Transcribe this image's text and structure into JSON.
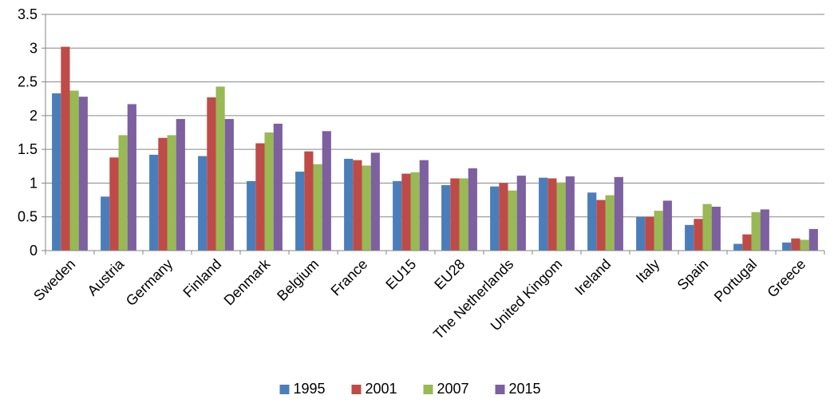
{
  "chart_data": {
    "type": "bar",
    "title": "",
    "xlabel": "",
    "ylabel": "",
    "ylim": [
      0,
      3.5
    ],
    "yticks": [
      0,
      0.5,
      1,
      1.5,
      2,
      2.5,
      3,
      3.5
    ],
    "ytick_labels": [
      "0",
      "0.5",
      "1",
      "1.5",
      "2",
      "2.5",
      "3",
      "3.5"
    ],
    "grid": true,
    "legend_position": "bottom",
    "categories": [
      "Sweden",
      "Austria",
      "Germany",
      "Finland",
      "Denmark",
      "Belgium",
      "France",
      "EU15",
      "EU28",
      "The Netherlands",
      "United Kingom",
      "Ireland",
      "Italy",
      "Spain",
      "Portugal",
      "Greece"
    ],
    "series": [
      {
        "name": "1995",
        "color": "#4a7ebb",
        "values": [
          2.33,
          0.8,
          1.42,
          1.4,
          1.03,
          1.17,
          1.36,
          1.03,
          0.97,
          0.95,
          1.08,
          0.86,
          0.5,
          0.38,
          0.1,
          0.12
        ]
      },
      {
        "name": "2001",
        "color": "#be4b48",
        "values": [
          3.02,
          1.38,
          1.67,
          2.27,
          1.59,
          1.47,
          1.34,
          1.14,
          1.07,
          1.0,
          1.07,
          0.75,
          0.5,
          0.47,
          0.24,
          0.18
        ]
      },
      {
        "name": "2007",
        "color": "#98b954",
        "values": [
          2.37,
          1.71,
          1.71,
          2.43,
          1.75,
          1.28,
          1.26,
          1.16,
          1.07,
          0.89,
          1.01,
          0.82,
          0.59,
          0.69,
          0.57,
          0.16
        ]
      },
      {
        "name": "2015",
        "color": "#7d60a0",
        "values": [
          2.28,
          2.17,
          1.95,
          1.95,
          1.88,
          1.77,
          1.45,
          1.34,
          1.22,
          1.11,
          1.1,
          1.09,
          0.74,
          0.65,
          0.61,
          0.32
        ]
      }
    ]
  }
}
